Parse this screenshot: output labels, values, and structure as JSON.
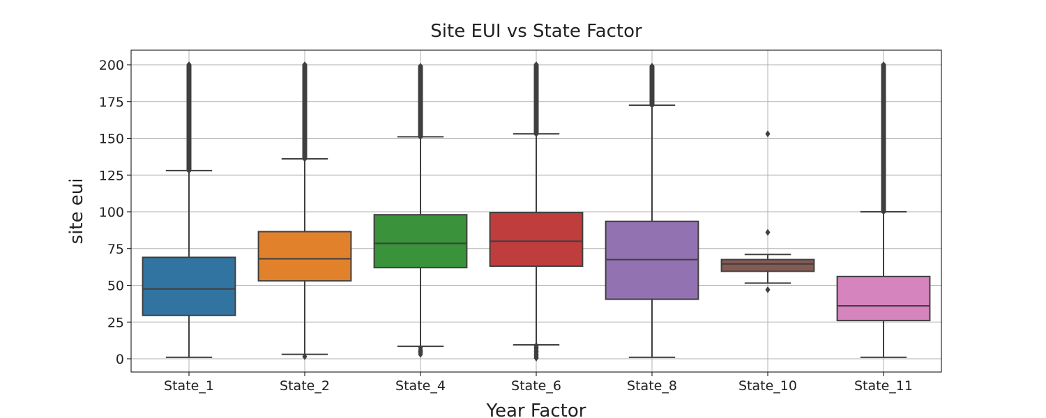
{
  "chart_data": {
    "type": "box",
    "title": "Site EUI vs State Factor",
    "xlabel": "Year Factor",
    "ylabel": "site eui",
    "ylim": [
      -9,
      210
    ],
    "yticks": [
      0,
      25,
      50,
      75,
      100,
      125,
      150,
      175,
      200
    ],
    "grid": true,
    "categories": [
      "State_1",
      "State_2",
      "State_4",
      "State_6",
      "State_8",
      "State_10",
      "State_11"
    ],
    "boxes": [
      {
        "category": "State_1",
        "color": "#3274a1",
        "whisker_low": 1,
        "q1": 29.5,
        "median": 47.5,
        "q3": 69,
        "whisker_high": 128,
        "outlier_low": [],
        "outlier_range_high": [
          128,
          200
        ],
        "outliers": []
      },
      {
        "category": "State_2",
        "color": "#e1812c",
        "whisker_low": 3,
        "q1": 53,
        "median": 68,
        "q3": 86.5,
        "whisker_high": 136,
        "outlier_low": [
          1.5
        ],
        "outlier_range_high": [
          136,
          200
        ],
        "outliers": []
      },
      {
        "category": "State_4",
        "color": "#3a923a",
        "whisker_low": 8.5,
        "q1": 62,
        "median": 78.5,
        "q3": 98,
        "whisker_high": 151,
        "outlier_low": [
          3,
          4,
          5,
          6,
          7.5
        ],
        "outlier_range_high": [
          151,
          199
        ],
        "outliers": []
      },
      {
        "category": "State_6",
        "color": "#c03d3e",
        "whisker_low": 9.5,
        "q1": 63,
        "median": 80,
        "q3": 99.5,
        "whisker_high": 153,
        "outlier_low": [
          0.5,
          1,
          2,
          3,
          4,
          5,
          6,
          7,
          8,
          9
        ],
        "outlier_range_high": [
          153,
          200
        ],
        "outliers": []
      },
      {
        "category": "State_8",
        "color": "#9372b2",
        "whisker_low": 1,
        "q1": 40.5,
        "median": 67.5,
        "q3": 93.5,
        "whisker_high": 172.5,
        "outlier_low": [],
        "outlier_range_high": [
          172.5,
          199
        ],
        "outliers": []
      },
      {
        "category": "State_10",
        "color": "#845b53",
        "whisker_low": 51.5,
        "q1": 59.5,
        "median": 64.5,
        "q3": 67.5,
        "whisker_high": 71,
        "outlier_low": [
          47
        ],
        "outlier_range_high": [],
        "outliers": [
          86,
          153
        ]
      },
      {
        "category": "State_11",
        "color": "#d684bd",
        "whisker_low": 1,
        "q1": 26,
        "median": 36,
        "q3": 56,
        "whisker_high": 100,
        "outlier_low": [],
        "outlier_range_high": [
          100,
          200
        ],
        "outliers": []
      }
    ]
  }
}
